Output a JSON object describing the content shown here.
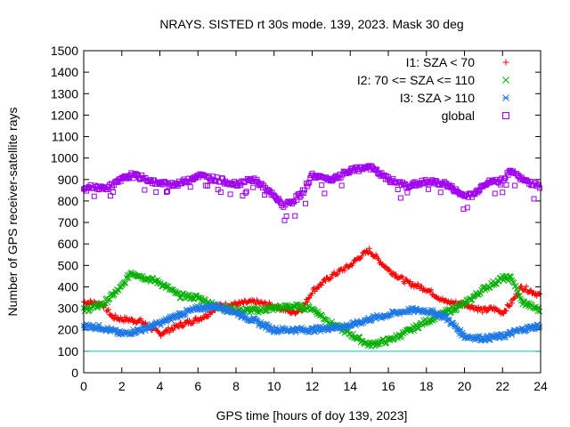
{
  "chart_data": {
    "type": "scatter",
    "title": "NRAYS. SISTED rt 30s mode. 139, 2023. Mask 30 deg",
    "xlabel": "GPS time [hours of doy 139, 2023]",
    "ylabel": "Number of GPS receiver-satellite rays",
    "xlim": [
      0,
      24
    ],
    "ylim": [
      0,
      1500
    ],
    "xticks": [
      "0",
      "2",
      "4",
      "6",
      "8",
      "10",
      "12",
      "14",
      "16",
      "18",
      "20",
      "22",
      "24"
    ],
    "yticks": [
      "0",
      "100",
      "200",
      "300",
      "400",
      "500",
      "600",
      "700",
      "800",
      "900",
      "1000",
      "1100",
      "1200",
      "1300",
      "1400",
      "1500"
    ],
    "threshold": 100,
    "threshold_color": "#00c8c8",
    "grid": false,
    "legend_position": "top-right",
    "series": [
      {
        "name": "I1: SZA < 70",
        "color": "#ff0000",
        "marker": "+",
        "x": [
          0,
          1,
          1.5,
          2,
          3,
          3.5,
          4,
          5,
          6,
          6.5,
          7,
          8,
          9,
          10,
          11,
          11.5,
          12,
          13,
          14,
          14.5,
          15,
          16,
          17,
          18,
          19,
          20,
          21,
          21.5,
          22,
          22.5,
          23,
          24
        ],
        "y": [
          330,
          320,
          260,
          250,
          240,
          210,
          180,
          220,
          250,
          270,
          310,
          320,
          330,
          310,
          280,
          300,
          380,
          450,
          500,
          540,
          570,
          480,
          420,
          390,
          330,
          320,
          290,
          300,
          280,
          330,
          400,
          360
        ]
      },
      {
        "name": "I2: 70 <= SZA <= 110",
        "color": "#00b000",
        "marker": "x",
        "x": [
          0,
          1,
          2,
          2.5,
          3,
          4,
          5,
          6,
          7,
          8,
          9,
          10,
          11,
          12,
          13,
          14,
          15,
          16,
          17,
          18,
          19,
          20,
          21,
          22,
          22.5,
          23,
          24
        ],
        "y": [
          290,
          320,
          400,
          470,
          450,
          420,
          360,
          350,
          310,
          290,
          290,
          300,
          310,
          300,
          230,
          180,
          130,
          150,
          190,
          240,
          280,
          320,
          390,
          440,
          440,
          330,
          290
        ]
      },
      {
        "name": "I3: SZA > 110",
        "color": "#1e78e6",
        "marker": "*",
        "x": [
          0,
          1,
          2,
          3,
          4,
          5,
          6,
          7,
          8,
          9,
          10,
          11,
          12,
          13,
          14,
          15,
          16,
          17,
          18,
          19,
          20,
          21,
          22,
          23,
          24
        ],
        "y": [
          220,
          210,
          180,
          200,
          230,
          270,
          300,
          310,
          280,
          240,
          200,
          200,
          200,
          210,
          220,
          250,
          270,
          290,
          290,
          260,
          170,
          160,
          170,
          200,
          220
        ]
      },
      {
        "name": "global",
        "color": "#a000f0",
        "marker": "square",
        "x": [
          0,
          0.5,
          1,
          1.5,
          2,
          2.5,
          3,
          4,
          5,
          6,
          7,
          8,
          9,
          10,
          10.5,
          11,
          11.5,
          12,
          13,
          14,
          15,
          16,
          17,
          18,
          19,
          20,
          20.5,
          21,
          22,
          22.5,
          23,
          24
        ],
        "y": [
          850,
          870,
          860,
          870,
          900,
          920,
          910,
          880,
          880,
          920,
          900,
          880,
          900,
          820,
          780,
          800,
          840,
          920,
          900,
          940,
          960,
          900,
          870,
          890,
          880,
          820,
          830,
          880,
          900,
          940,
          900,
          870
        ]
      }
    ]
  }
}
